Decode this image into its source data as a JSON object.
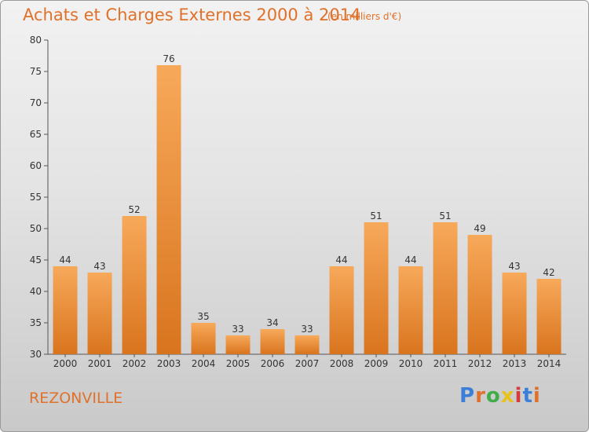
{
  "header": {
    "title": "Achats et Charges Externes 2000 à 2014",
    "subtitle": "(en milliers d'€)"
  },
  "footer": {
    "location": "REZONVILLE",
    "logo": "Proxiti",
    "logo_colors": [
      "#3b7fd8",
      "#e0712a",
      "#3fae49",
      "#e8c21a",
      "#d83b3b",
      "#3b7fd8",
      "#e0712a"
    ]
  },
  "chart_data": {
    "type": "bar",
    "categories": [
      "2000",
      "2001",
      "2002",
      "2003",
      "2004",
      "2005",
      "2006",
      "2007",
      "2008",
      "2009",
      "2010",
      "2011",
      "2012",
      "2013",
      "2014"
    ],
    "values": [
      44,
      43,
      52,
      76,
      35,
      33,
      34,
      33,
      44,
      51,
      44,
      51,
      49,
      43,
      42
    ],
    "ylim": [
      30,
      80
    ],
    "yticks": [
      30,
      35,
      40,
      45,
      50,
      55,
      60,
      65,
      70,
      75,
      80
    ],
    "grid": false,
    "bar_color_top": "#f7a95a",
    "bar_color_bottom": "#d9741e",
    "title": "Achats et Charges Externes 2000 à 2014",
    "ylabel": ""
  }
}
